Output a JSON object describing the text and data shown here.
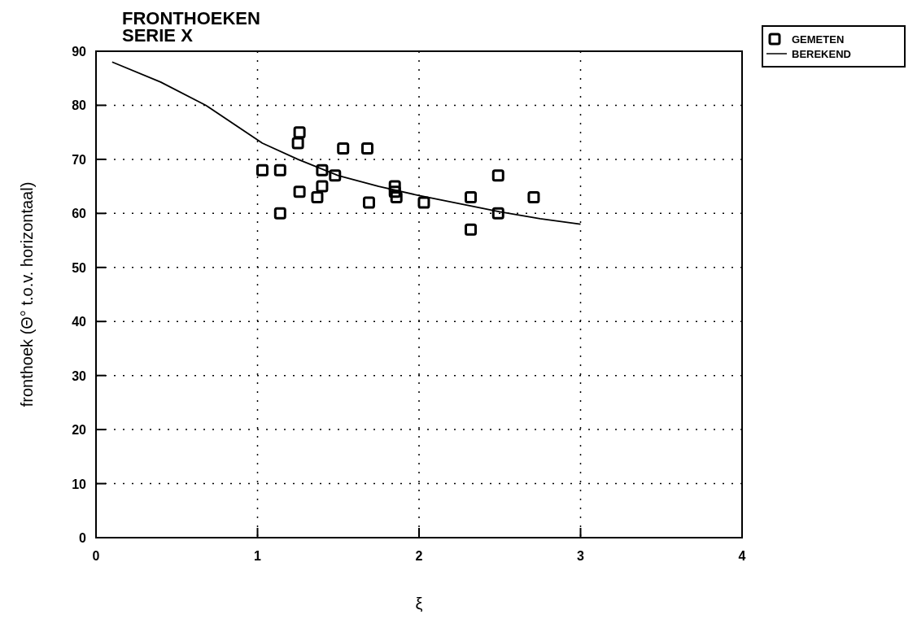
{
  "chart_data": {
    "type": "scatter",
    "title": "FRONTHOEKEN",
    "subtitle": "SERIE X",
    "xlabel": "ξ",
    "ylabel": "fronthoek (Θ° t.o.v. horizontaal)",
    "xlim": [
      0,
      4
    ],
    "xticks": [
      0,
      1,
      2,
      3,
      4
    ],
    "ylim": [
      0,
      90
    ],
    "yticks": [
      0,
      10,
      20,
      30,
      40,
      50,
      60,
      70,
      80,
      90
    ],
    "grid": true,
    "legend": "top right",
    "series": [
      {
        "name": "GEMETEN",
        "marker": "square",
        "color": "#000000",
        "x": [
          1.03,
          1.14,
          1.14,
          1.26,
          1.25,
          1.26,
          1.37,
          1.4,
          1.4,
          1.48,
          1.53,
          1.68,
          1.69,
          1.85,
          1.85,
          1.86,
          2.03,
          2.32,
          2.32,
          2.49,
          2.49,
          2.71
        ],
        "values": [
          68,
          68,
          60,
          75,
          73,
          64,
          63,
          68,
          65,
          67,
          72,
          72,
          62,
          65,
          64,
          63,
          62,
          63,
          57,
          67,
          60,
          63
        ]
      },
      {
        "name": "BEREKEND",
        "type": "line",
        "marker": "none",
        "line_style": "solid",
        "color": "#000000",
        "x": [
          0.1,
          0.4,
          0.68,
          1.03,
          1.25,
          1.5,
          1.75,
          2,
          2.25,
          2.5,
          2.75,
          3
        ],
        "values": [
          88,
          84.3,
          80,
          73,
          70,
          67,
          65,
          63.3,
          61.8,
          60.3,
          59,
          58
        ]
      }
    ]
  }
}
